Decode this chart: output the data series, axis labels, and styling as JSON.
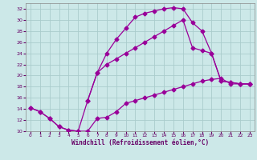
{
  "xlabel": "Windchill (Refroidissement éolien,°C)",
  "bg_color": "#cce8e8",
  "grid_color": "#aacccc",
  "line_color": "#990099",
  "xlim": [
    -0.5,
    23.5
  ],
  "ylim": [
    10,
    33
  ],
  "xticks": [
    0,
    1,
    2,
    3,
    4,
    5,
    6,
    7,
    8,
    9,
    10,
    11,
    12,
    13,
    14,
    15,
    16,
    17,
    18,
    19,
    20,
    21,
    22,
    23
  ],
  "yticks": [
    10,
    12,
    14,
    16,
    18,
    20,
    22,
    24,
    26,
    28,
    30,
    32
  ],
  "curve1_x": [
    0,
    1,
    2,
    3,
    4,
    5,
    6,
    7,
    8,
    9,
    10,
    11,
    12,
    13,
    14,
    15,
    16,
    17,
    18,
    19,
    20,
    21,
    22,
    23
  ],
  "curve1_y": [
    14.2,
    13.5,
    12.3,
    10.8,
    10.2,
    10.0,
    10.0,
    12.3,
    12.5,
    13.5,
    15.0,
    15.5,
    16.0,
    16.5,
    17.0,
    17.5,
    18.0,
    18.5,
    19.0,
    19.3,
    19.5,
    18.5,
    18.5,
    18.5
  ],
  "curve2_x": [
    0,
    1,
    2,
    3,
    4,
    5,
    6,
    7,
    8,
    9,
    10,
    11,
    12,
    13,
    14,
    15,
    16,
    17,
    18,
    19,
    20,
    21,
    22,
    23
  ],
  "curve2_y": [
    14.2,
    13.5,
    12.3,
    10.8,
    10.2,
    10.0,
    15.5,
    20.5,
    24.0,
    26.5,
    28.5,
    30.5,
    31.2,
    31.6,
    32.0,
    32.2,
    32.0,
    29.5,
    28.0,
    24.0,
    19.0,
    18.8,
    18.5,
    18.5
  ],
  "curve3_x": [
    6,
    7,
    8,
    9,
    10,
    11,
    12,
    13,
    14,
    15,
    16,
    17,
    18,
    19,
    20,
    21,
    22,
    23
  ],
  "curve3_y": [
    15.5,
    20.5,
    22.0,
    23.0,
    24.0,
    25.0,
    26.0,
    27.0,
    28.0,
    29.0,
    30.0,
    25.0,
    24.5,
    24.0,
    19.0,
    18.8,
    18.5,
    18.5
  ]
}
